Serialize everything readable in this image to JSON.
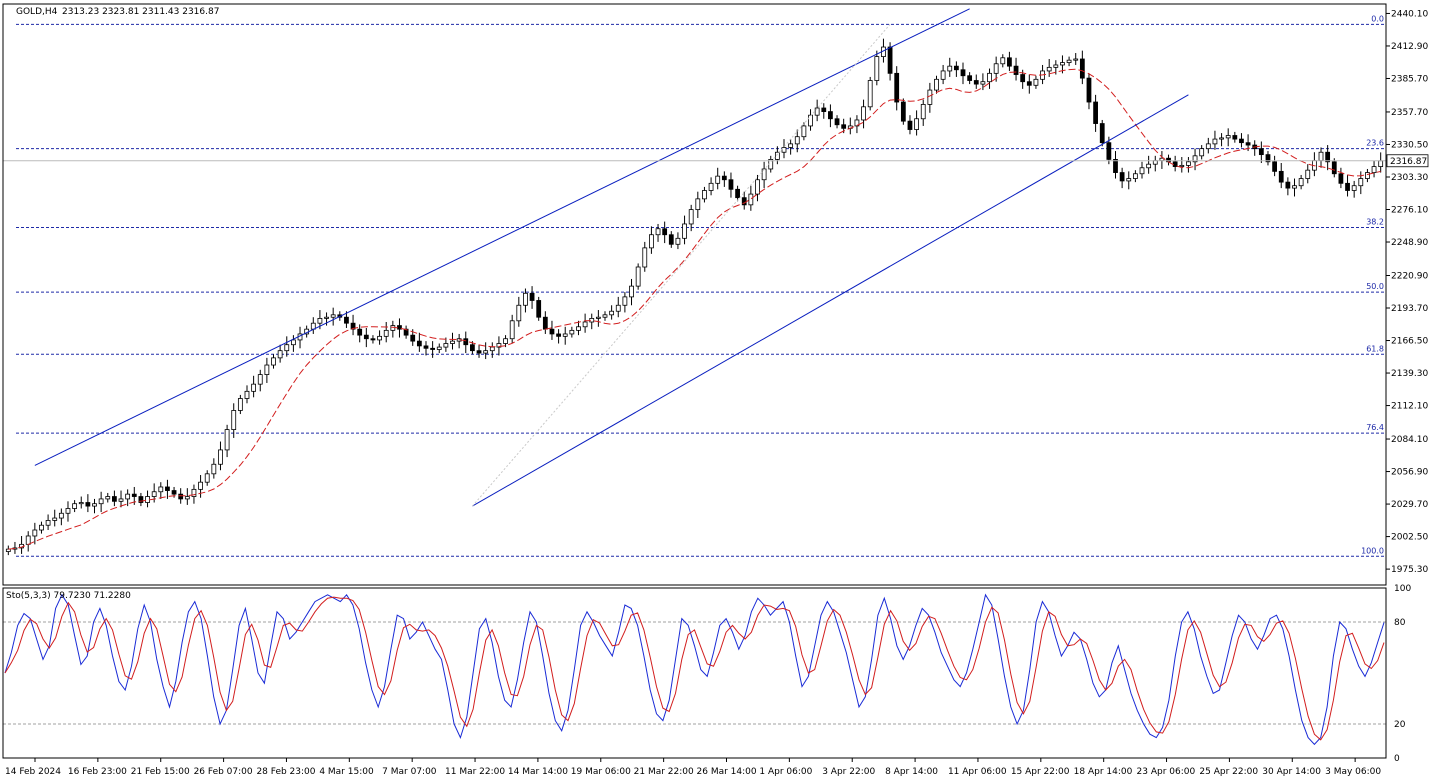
{
  "header": {
    "symbol": "GOLD,H4",
    "ohlc": "2313.23 2323.81 2311.43 2316.87",
    "indicator": "Sto(5,3,3) 79.7230 71.2280"
  },
  "colors": {
    "background": "#ffffff",
    "axis": "#000000",
    "fib": "#1e2aa8",
    "channel": "#0a1fbf",
    "ma": "#d21e1e",
    "stoch_main": "#1a2bd6",
    "stoch_signal": "#d21e1e",
    "grid_dash": "#a0a0a0"
  },
  "chart_data": {
    "type": "candlestick",
    "symbol": "GOLD",
    "timeframe": "H4",
    "price_axis": {
      "range": [
        1962,
        2448
      ],
      "tick_labels": [
        "2440.10",
        "2412.90",
        "2385.70",
        "2357.70",
        "2330.50",
        "2303.30",
        "2276.10",
        "2248.90",
        "2220.90",
        "2193.70",
        "2166.50",
        "2139.30",
        "2112.10",
        "2084.10",
        "2056.90",
        "2029.70",
        "2002.50",
        "1975.30"
      ],
      "current_price_label": "2316.87"
    },
    "x_axis": {
      "tick_labels": [
        "14 Feb 2024",
        "16 Feb 23:00",
        "21 Feb 15:00",
        "26 Feb 07:00",
        "28 Feb 23:00",
        "4 Mar 15:00",
        "7 Mar 07:00",
        "11 Mar 22:00",
        "14 Mar 14:00",
        "19 Mar 06:00",
        "21 Mar 22:00",
        "26 Mar 14:00",
        "1 Apr 06:00",
        "3 Apr 22:00",
        "8 Apr 14:00",
        "11 Apr 06:00",
        "15 Apr 22:00",
        "18 Apr 14:00",
        "23 Apr 06:00",
        "25 Apr 22:00",
        "30 Apr 14:00",
        "3 May 06:00"
      ]
    },
    "fibonacci": [
      {
        "level": "0.0",
        "price": 2431
      },
      {
        "level": "23.6",
        "price": 2327
      },
      {
        "level": "38.2",
        "price": 2261
      },
      {
        "level": "50.0",
        "price": 2207
      },
      {
        "level": "61.8",
        "price": 2155
      },
      {
        "level": "76.4",
        "price": 2089
      },
      {
        "level": "100.0",
        "price": 1986
      }
    ],
    "close_series": [
      1992,
      1993,
      1996,
      2003,
      2008,
      2012,
      2016,
      2018,
      2022,
      2026,
      2030,
      2031,
      2028,
      2030,
      2034,
      2036,
      2032,
      2034,
      2038,
      2036,
      2031,
      2036,
      2040,
      2044,
      2041,
      2038,
      2034,
      2036,
      2042,
      2048,
      2055,
      2063,
      2075,
      2092,
      2108,
      2118,
      2124,
      2130,
      2138,
      2146,
      2152,
      2158,
      2163,
      2167,
      2172,
      2176,
      2181,
      2185,
      2186,
      2188,
      2186,
      2181,
      2176,
      2171,
      2168,
      2167,
      2170,
      2175,
      2179,
      2176,
      2171,
      2166,
      2162,
      2160,
      2159,
      2161,
      2164,
      2166,
      2168,
      2163,
      2158,
      2156,
      2158,
      2161,
      2164,
      2168,
      2183,
      2196,
      2206,
      2200,
      2186,
      2176,
      2172,
      2170,
      2172,
      2175,
      2178,
      2182,
      2185,
      2186,
      2188,
      2191,
      2196,
      2203,
      2212,
      2228,
      2244,
      2255,
      2260,
      2255,
      2247,
      2252,
      2264,
      2276,
      2285,
      2292,
      2298,
      2304,
      2301,
      2293,
      2286,
      2280,
      2289,
      2301,
      2310,
      2318,
      2324,
      2328,
      2331,
      2337,
      2346,
      2355,
      2361,
      2358,
      2352,
      2347,
      2344,
      2346,
      2351,
      2362,
      2384,
      2404,
      2412,
      2390,
      2366,
      2350,
      2343,
      2352,
      2364,
      2376,
      2385,
      2392,
      2396,
      2393,
      2388,
      2384,
      2381,
      2383,
      2390,
      2398,
      2403,
      2396,
      2389,
      2383,
      2380,
      2385,
      2392,
      2395,
      2397,
      2399,
      2401,
      2402,
      2386,
      2366,
      2348,
      2332,
      2318,
      2307,
      2300,
      2302,
      2306,
      2311,
      2314,
      2317,
      2319,
      2316,
      2312,
      2313,
      2316,
      2321,
      2327,
      2331,
      2335,
      2336,
      2338,
      2335,
      2332,
      2330,
      2327,
      2322,
      2316,
      2308,
      2299,
      2294,
      2296,
      2302,
      2309,
      2317,
      2324,
      2316,
      2306,
      2298,
      2292,
      2296,
      2302,
      2307,
      2312,
      2316.87
    ],
    "stochastic": {
      "name": "Sto(5,3,3)",
      "main_value": 79.723,
      "signal_value": 71.228,
      "levels": [
        20,
        80
      ],
      "range": [
        0,
        100
      ],
      "tick_labels": [
        "100",
        "80",
        "20",
        "0"
      ],
      "main_series": [
        50,
        62,
        78,
        85,
        82,
        70,
        58,
        66,
        88,
        96,
        90,
        72,
        55,
        60,
        80,
        88,
        78,
        60,
        45,
        40,
        54,
        76,
        90,
        80,
        58,
        42,
        30,
        45,
        68,
        86,
        92,
        82,
        60,
        36,
        20,
        28,
        52,
        78,
        88,
        70,
        50,
        44,
        66,
        86,
        82,
        70,
        74,
        80,
        86,
        92,
        94,
        96,
        94,
        92,
        96,
        90,
        76,
        56,
        40,
        30,
        42,
        64,
        84,
        82,
        70,
        74,
        80,
        72,
        64,
        58,
        40,
        20,
        12,
        24,
        50,
        76,
        82,
        68,
        48,
        34,
        30,
        46,
        68,
        86,
        80,
        60,
        38,
        22,
        16,
        28,
        52,
        78,
        86,
        80,
        72,
        66,
        60,
        74,
        90,
        88,
        78,
        60,
        40,
        26,
        22,
        34,
        58,
        82,
        78,
        66,
        52,
        48,
        62,
        78,
        82,
        74,
        64,
        72,
        86,
        94,
        90,
        84,
        88,
        92,
        80,
        60,
        42,
        48,
        66,
        84,
        92,
        86,
        74,
        62,
        46,
        30,
        36,
        58,
        84,
        94,
        82,
        66,
        58,
        66,
        78,
        88,
        84,
        74,
        62,
        54,
        46,
        42,
        50,
        64,
        80,
        96,
        90,
        70,
        48,
        30,
        20,
        28,
        52,
        80,
        92,
        86,
        72,
        60,
        66,
        74,
        70,
        58,
        44,
        36,
        40,
        56,
        66,
        52,
        38,
        28,
        20,
        14,
        12,
        18,
        34,
        60,
        80,
        86,
        76,
        60,
        48,
        38,
        40,
        56,
        72,
        84,
        80,
        70,
        64,
        72,
        82,
        84,
        76,
        60,
        40,
        22,
        12,
        8,
        12,
        30,
        60,
        80,
        76,
        64,
        54,
        48,
        56,
        68,
        79.7
      ]
    }
  }
}
